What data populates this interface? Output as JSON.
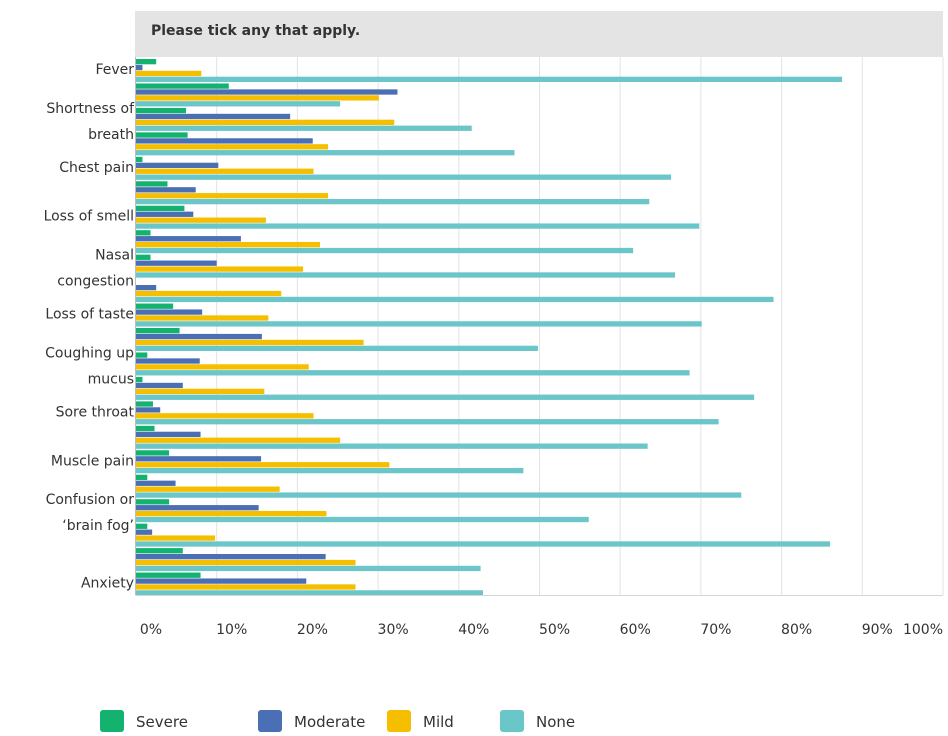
{
  "header": {
    "instruction": "Please tick any that apply."
  },
  "chart_data": {
    "type": "bar",
    "orientation": "horizontal",
    "grid": true,
    "legend_position": "bottom",
    "xlim": [
      0,
      100
    ],
    "x_ticks": [
      "0%",
      "10%",
      "20%",
      "30%",
      "40%",
      "50%",
      "60%",
      "70%",
      "80%",
      "90%",
      "100%"
    ],
    "categories": [
      "Fever",
      "",
      "Shortness of breath",
      "",
      "Chest pain",
      "",
      "Loss of smell",
      "",
      "Nasal congestion",
      "",
      "Loss of taste",
      "",
      "Coughing up mucus",
      "",
      "Sore throat",
      "",
      "Muscle pain",
      "",
      "Confusion or ‘brain fog’",
      "",
      "",
      "Anxiety"
    ],
    "category_label_lines": [
      [
        "Fever"
      ],
      [],
      [
        "Shortness of",
        "breath"
      ],
      [],
      [
        "Chest pain"
      ],
      [],
      [
        "Loss of smell"
      ],
      [],
      [
        "Nasal",
        "congestion"
      ],
      [],
      [
        "Loss of taste"
      ],
      [],
      [
        "Coughing up",
        "mucus"
      ],
      [],
      [
        "Sore throat"
      ],
      [],
      [
        "Muscle pain"
      ],
      [],
      [
        "Confusion or",
        "‘brain fog’"
      ],
      [],
      [],
      [
        "Anxiety"
      ]
    ],
    "series": [
      {
        "name": "Severe",
        "color": "#13b36f",
        "values": [
          2.5,
          11.5,
          6.2,
          6.4,
          0.8,
          3.9,
          6.0,
          1.8,
          1.8,
          0.0,
          4.6,
          5.4,
          1.4,
          0.8,
          2.1,
          2.3,
          4.1,
          1.4,
          4.1,
          1.4,
          5.8,
          8.0
        ]
      },
      {
        "name": "Moderate",
        "color": "#4a6fb5",
        "values": [
          0.8,
          32.4,
          19.1,
          21.9,
          10.2,
          7.4,
          7.1,
          13.0,
          10.0,
          2.5,
          8.2,
          15.6,
          7.9,
          5.8,
          3.0,
          8.0,
          15.5,
          4.9,
          15.2,
          2.0,
          23.5,
          21.1
        ]
      },
      {
        "name": "Mild",
        "color": "#f5bf00",
        "values": [
          8.1,
          30.1,
          32.0,
          23.8,
          22.0,
          23.8,
          16.1,
          22.8,
          20.7,
          18.0,
          16.4,
          28.2,
          21.4,
          15.9,
          22.0,
          25.3,
          31.4,
          17.8,
          23.6,
          9.8,
          27.2,
          27.2
        ]
      },
      {
        "name": "None",
        "color": "#6ac6c8",
        "values": [
          87.5,
          25.3,
          41.6,
          46.9,
          66.3,
          63.6,
          69.8,
          61.6,
          66.8,
          79.0,
          70.1,
          49.8,
          68.6,
          76.6,
          72.2,
          63.4,
          48.0,
          75.0,
          56.1,
          86.0,
          42.7,
          43.0
        ]
      }
    ]
  }
}
